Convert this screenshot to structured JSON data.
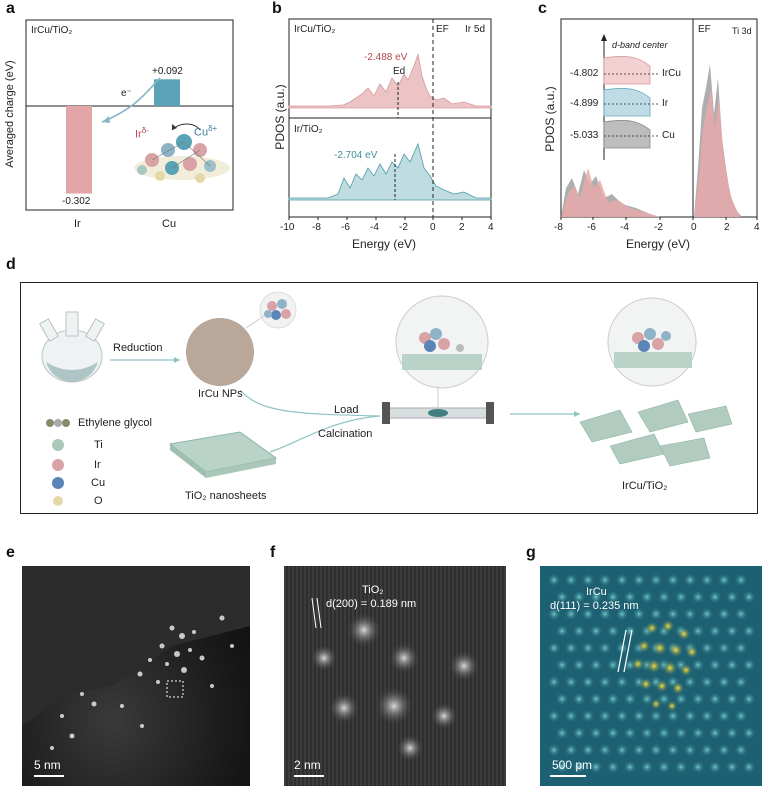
{
  "panels": {
    "a": {
      "label": "a",
      "inset": "IrCu/TiO₂",
      "ylabel": "Averaged charge (eV)",
      "xcats": [
        "Ir",
        "Cu"
      ],
      "values": [
        -0.302,
        0.092
      ],
      "value_labels": [
        "-0.302",
        "+0.092"
      ],
      "electron": "e⁻",
      "ir_label": "Ir",
      "ir_charge": "δ-",
      "cu_label": "Cu",
      "cu_charge": "δ+"
    },
    "b": {
      "label": "b",
      "ylabel": "PDOS (a.u.)",
      "xlabel": "Energy (eV)",
      "xticks": [
        "-10",
        "-8",
        "-6",
        "-4",
        "-2",
        "0",
        "2",
        "4"
      ],
      "top_title": "IrCu/TiO₂",
      "top_value": "-2.488 eV",
      "ed_label": "Ed",
      "ef_label": "EF",
      "orbital": "Ir 5d",
      "bottom_title": "Ir/TiO₂",
      "bottom_value": "-2.704 eV"
    },
    "c": {
      "label": "c",
      "ylabel": "PDOS (a.u.)",
      "xlabel": "Energy (eV)",
      "xticks": [
        "-8",
        "-6",
        "-4",
        "-2",
        "0",
        "2",
        "4"
      ],
      "ef_label": "EF",
      "orbital": "Ti 3d",
      "dband_title": "d-band center",
      "dband": [
        {
          "value": "-4.802",
          "name": "IrCu"
        },
        {
          "value": "-4.899",
          "name": "Ir"
        },
        {
          "value": "-5.033",
          "name": "Cu"
        }
      ]
    },
    "d": {
      "label": "d",
      "reduction": "Reduction",
      "ircu_nps": "IrCu NPs",
      "load": "Load",
      "calcination": "Calcination",
      "tio2_sheets": "TiO₂ nanosheets",
      "product": "IrCu/TiO₂",
      "legend": [
        "Ethylene glycol",
        "Ti",
        "Ir",
        "Cu",
        "O"
      ]
    },
    "e": {
      "label": "e",
      "scale": "5 nm"
    },
    "f": {
      "label": "f",
      "title": "TiO₂",
      "spacing": "d(200) = 0.189 nm",
      "scale": "2 nm"
    },
    "g": {
      "label": "g",
      "title": "IrCu",
      "spacing": "d(111) = 0.235 nm",
      "scale": "500 pm"
    }
  },
  "colors": {
    "ir": "#e2a5a8",
    "cu": "#5aa3b7",
    "grey": "#8a8a8a",
    "tio2": "#9fbfb0"
  },
  "chart_data": [
    {
      "type": "bar",
      "categories": [
        "Ir",
        "Cu"
      ],
      "values": [
        -0.302,
        0.092
      ],
      "ylabel": "Averaged charge (eV)"
    },
    {
      "type": "area",
      "xlabel": "Energy (eV)",
      "ylabel": "PDOS (a.u.)",
      "xlim": [
        -10,
        4
      ],
      "series": [
        {
          "name": "IrCu/TiO₂",
          "d_band_center": -2.488
        },
        {
          "name": "Ir/TiO₂",
          "d_band_center": -2.704
        }
      ]
    },
    {
      "type": "area",
      "xlabel": "Energy (eV)",
      "ylabel": "PDOS (a.u.)",
      "xlim": [
        -8,
        4
      ],
      "series": [
        {
          "name": "IrCu",
          "d_band_center": -4.802
        },
        {
          "name": "Ir",
          "d_band_center": -4.899
        },
        {
          "name": "Cu",
          "d_band_center": -5.033
        }
      ]
    }
  ]
}
